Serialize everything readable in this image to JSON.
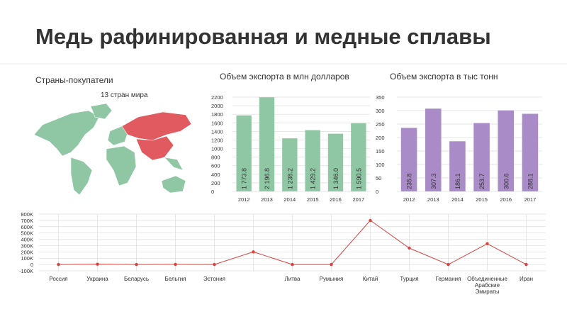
{
  "title": "Медь рафинированная и медные сплавы",
  "map": {
    "title": "Страны-покупатели",
    "subtitle": "13 стран мира"
  },
  "chart_data": [
    {
      "type": "bar",
      "title": "Объем экспорта в млн долларов",
      "categories": [
        "2012",
        "2013",
        "2014",
        "2015",
        "2016",
        "2017"
      ],
      "values": [
        1773.8,
        2196.8,
        1238.2,
        1429.2,
        1346.0,
        1590.5
      ],
      "value_labels": [
        "1 773.8",
        "2 196.8",
        "1 238.2",
        "1 429.2",
        "1 346.0",
        "1 590.5"
      ],
      "color": "#8fc7a5",
      "ylim": [
        0,
        2200
      ],
      "yticks": [
        0,
        200,
        400,
        600,
        800,
        1000,
        1200,
        1400,
        1600,
        1800,
        2000,
        2200
      ],
      "grid": true
    },
    {
      "type": "bar",
      "title": "Объем экспорта в тыс тонн",
      "categories": [
        "2012",
        "2013",
        "2014",
        "2015",
        "2016",
        "2017"
      ],
      "values": [
        235.8,
        307.3,
        186.1,
        253.7,
        300.6,
        288.1
      ],
      "color": "#a98bc7",
      "ylim": [
        0,
        350
      ],
      "yticks": [
        0,
        50,
        100,
        150,
        200,
        250,
        300,
        350
      ],
      "grid": true
    },
    {
      "type": "line",
      "categories": [
        "Россия",
        "Украина",
        "Беларусь",
        "Бельгия",
        "Эстония",
        null,
        "Литва",
        "Румыния",
        "Китай",
        "Турция",
        "Германия",
        "Объединенные Арабские Эмираты",
        "Иран"
      ],
      "values": [
        0,
        5000,
        0,
        2000,
        0,
        200000,
        0,
        0,
        700000,
        260000,
        0,
        330000,
        0
      ],
      "color": "#d9423f",
      "ylim": [
        -100000,
        800000
      ],
      "yticks": [
        {
          "value": -100000,
          "label": "-100K"
        },
        0,
        {
          "value": 100000,
          "label": "100K"
        },
        {
          "value": 200000,
          "label": "200K"
        },
        {
          "value": 300000,
          "label": "300K"
        },
        {
          "value": 400000,
          "label": "400K"
        },
        {
          "value": 500000,
          "label": "500K"
        },
        {
          "value": 600000,
          "label": "600K"
        },
        {
          "value": 700000,
          "label": "700K"
        },
        {
          "value": 800000,
          "label": "800K"
        }
      ],
      "grid": true
    }
  ]
}
